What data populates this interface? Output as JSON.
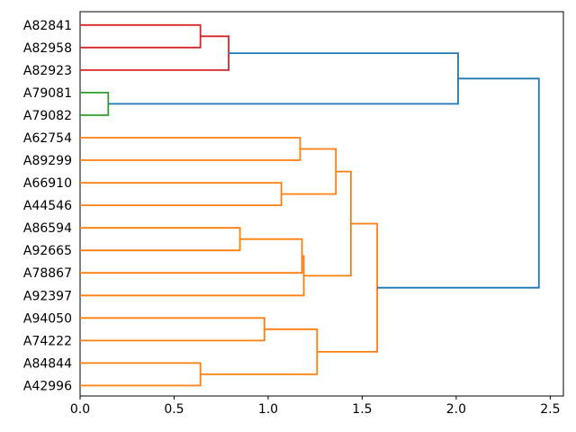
{
  "figure": {
    "background": "#ffffff",
    "text_color": "#000000"
  },
  "chart_data": {
    "type": "dendrogram",
    "orientation": "horizontal-root-right",
    "title": "",
    "xlabel": "",
    "ylabel": "",
    "grid": false,
    "legend": null,
    "xlim": [
      0,
      2.57
    ],
    "x_ticks": [
      0,
      0.5,
      1.0,
      1.5,
      2.0,
      2.5
    ],
    "x_tick_labels": [
      "0.0",
      "0.5",
      "1.0",
      "1.5",
      "2.0",
      "2.5"
    ],
    "leaf_labels": [
      "A82841",
      "A82958",
      "A82923",
      "A79081",
      "A79082",
      "A62754",
      "A89299",
      "A66910",
      "A44546",
      "A86594",
      "A92665",
      "A78867",
      "A92397",
      "A94050",
      "A74222",
      "A84844",
      "A42996"
    ],
    "colors": {
      "blue": "#1f77b4",
      "orange": "#ff7f0e",
      "green": "#2ca02c",
      "red": "#d62728"
    },
    "merges": [
      {
        "id": "m1",
        "children": [
          "A82841",
          "A82958"
        ],
        "distance": 0.64,
        "color": "red"
      },
      {
        "id": "m2",
        "children": [
          "m1",
          "A82923"
        ],
        "distance": 0.79,
        "color": "red"
      },
      {
        "id": "m3",
        "children": [
          "A79081",
          "A79082"
        ],
        "distance": 0.15,
        "color": "green"
      },
      {
        "id": "m4",
        "children": [
          "A62754",
          "A89299"
        ],
        "distance": 1.17,
        "color": "orange"
      },
      {
        "id": "m5",
        "children": [
          "A66910",
          "A44546"
        ],
        "distance": 1.07,
        "color": "orange"
      },
      {
        "id": "m6",
        "children": [
          "m4",
          "m5"
        ],
        "distance": 1.36,
        "color": "orange"
      },
      {
        "id": "m7",
        "children": [
          "A86594",
          "A92665"
        ],
        "distance": 0.85,
        "color": "orange"
      },
      {
        "id": "m8",
        "children": [
          "m7",
          "A78867"
        ],
        "distance": 1.18,
        "color": "orange"
      },
      {
        "id": "m9",
        "children": [
          "m8",
          "A92397"
        ],
        "distance": 1.19,
        "color": "orange"
      },
      {
        "id": "m10",
        "children": [
          "m6",
          "m9"
        ],
        "distance": 1.44,
        "color": "orange"
      },
      {
        "id": "m11",
        "children": [
          "A94050",
          "A74222"
        ],
        "distance": 0.98,
        "color": "orange"
      },
      {
        "id": "m12",
        "children": [
          "A84844",
          "A42996"
        ],
        "distance": 0.64,
        "color": "orange"
      },
      {
        "id": "m13",
        "children": [
          "m11",
          "m12"
        ],
        "distance": 1.26,
        "color": "orange"
      },
      {
        "id": "m14",
        "children": [
          "m10",
          "m13"
        ],
        "distance": 1.58,
        "color": "orange"
      },
      {
        "id": "m15",
        "children": [
          "m2",
          "m3"
        ],
        "distance": 2.01,
        "color": "blue"
      },
      {
        "id": "m16",
        "children": [
          "m15",
          "m14"
        ],
        "distance": 2.44,
        "color": "blue"
      }
    ]
  }
}
